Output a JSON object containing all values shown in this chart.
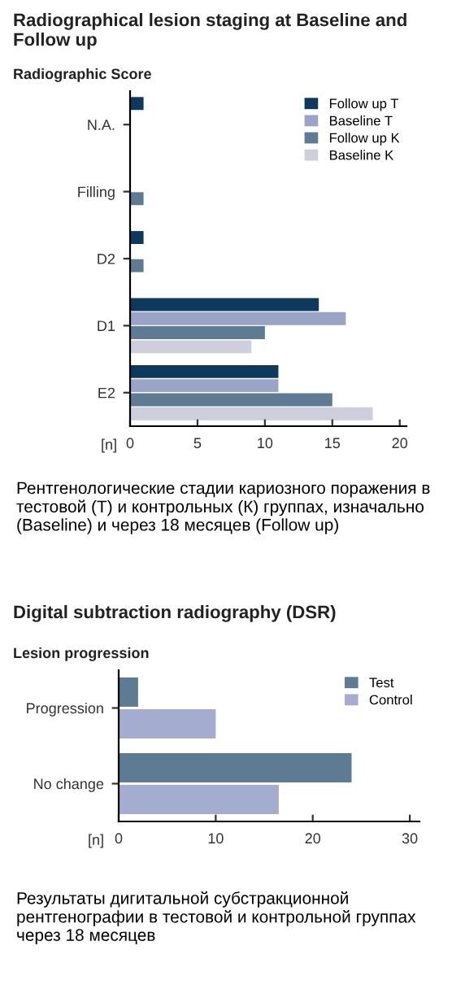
{
  "chart_data": [
    {
      "type": "bar",
      "orientation": "horizontal",
      "title": "Radiographical lesion staging at Baseline and Follow up",
      "subtitle": "Radiographic Score",
      "xlabel": "[n]",
      "categories": [
        "N.A.",
        "Filling",
        "D2",
        "D1",
        "E2"
      ],
      "series": [
        {
          "name": "Follow up T",
          "color": "#0d3a5c",
          "values": [
            1,
            null,
            1,
            14,
            11
          ]
        },
        {
          "name": "Baseline T",
          "color": "#9aa4c6",
          "values": [
            null,
            null,
            null,
            16,
            11
          ]
        },
        {
          "name": "Follow up K",
          "color": "#5d7b93",
          "values": [
            null,
            1,
            1,
            10,
            15
          ]
        },
        {
          "name": "Baseline K",
          "color": "#cdd0dc",
          "values": [
            null,
            null,
            null,
            9,
            18
          ]
        }
      ],
      "xlim": [
        0,
        20.5
      ],
      "xticks": [
        0,
        5,
        10,
        15,
        20
      ],
      "grid": false,
      "legend": "top right",
      "annotations": [
        "Рентгенологические стадии кариозного поражения в тестовой (Т) и контрольных (К) группах, изначально (Baseline) и через 18 месяцев (Follow up)"
      ]
    },
    {
      "type": "bar",
      "orientation": "horizontal",
      "title": "Digital subtraction radiography (DSR)",
      "subtitle": "Lesion progression",
      "xlabel": "[n]",
      "categories": [
        "Progression",
        "No change"
      ],
      "series": [
        {
          "name": "Test",
          "color": "#5d7b93",
          "values": [
            2,
            24
          ]
        },
        {
          "name": "Control",
          "color": "#a4acd0",
          "values": [
            10,
            16.5
          ]
        }
      ],
      "xlim": [
        0,
        31
      ],
      "xticks": [
        0,
        10,
        20,
        30
      ],
      "grid": false,
      "legend": "top right",
      "annotations": [
        "Результаты дигитальной субстракционной рентгенографии в тестовой и контрольной группах через 18 месяцев"
      ]
    }
  ]
}
